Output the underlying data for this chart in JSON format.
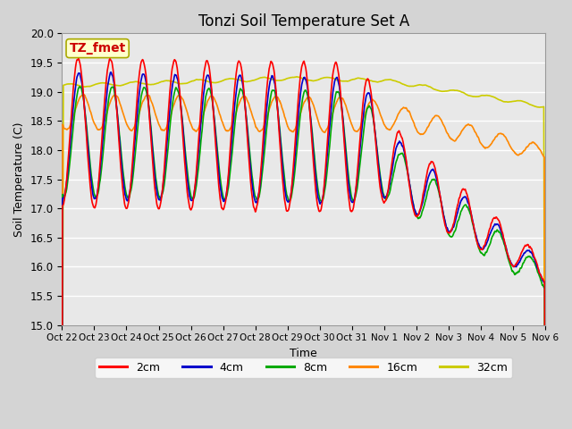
{
  "title": "Tonzi Soil Temperature Set A",
  "xlabel": "Time",
  "ylabel": "Soil Temperature (C)",
  "ylim": [
    15.0,
    20.0
  ],
  "yticks": [
    15.0,
    15.5,
    16.0,
    16.5,
    17.0,
    17.5,
    18.0,
    18.5,
    19.0,
    19.5,
    20.0
  ],
  "annotation_text": "TZ_fmet",
  "annotation_box_color": "#ffffcc",
  "annotation_text_color": "#cc0000",
  "colors": {
    "2cm": "#ff0000",
    "4cm": "#0000cc",
    "8cm": "#00aa00",
    "16cm": "#ff8800",
    "32cm": "#cccc00"
  },
  "line_width": 1.2,
  "xtick_labels": [
    "Oct 22",
    "Oct 23",
    "Oct 24",
    "Oct 25",
    "Oct 26",
    "Oct 27",
    "Oct 28",
    "Oct 29",
    "Oct 30",
    "Oct 31",
    "Nov 1",
    "Nov 2",
    "Nov 3",
    "Nov 4",
    "Nov 5",
    "Nov 6"
  ],
  "legend_labels": [
    "2cm",
    "4cm",
    "8cm",
    "16cm",
    "32cm"
  ],
  "figsize": [
    6.4,
    4.8
  ],
  "dpi": 100
}
